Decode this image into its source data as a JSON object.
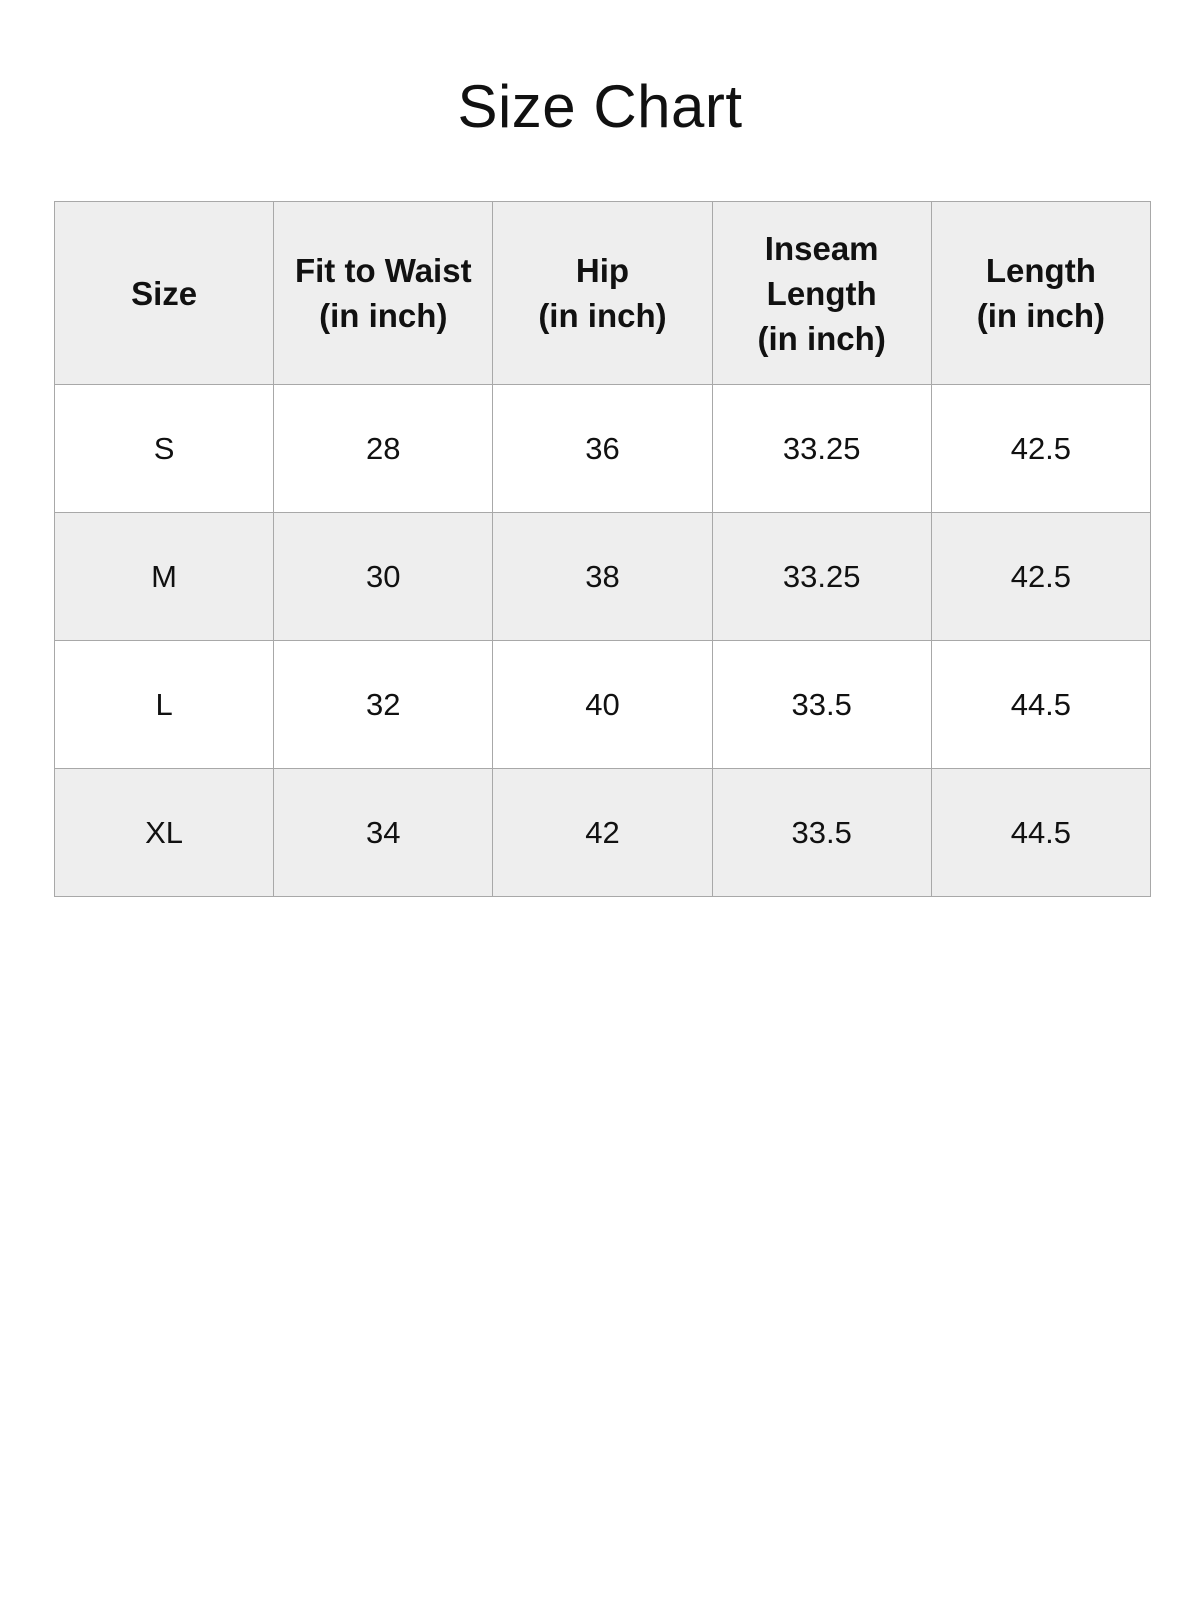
{
  "title": "Size Chart",
  "table": {
    "headers": [
      [
        "Size"
      ],
      [
        "Fit to Waist",
        "(in inch)"
      ],
      [
        "Hip",
        "(in inch)"
      ],
      [
        "Inseam",
        "Length",
        "(in inch)"
      ],
      [
        "Length",
        "(in inch)"
      ]
    ],
    "rows": [
      [
        "S",
        "28",
        "36",
        "33.25",
        "42.5"
      ],
      [
        "M",
        "30",
        "38",
        "33.25",
        "42.5"
      ],
      [
        "L",
        "32",
        "40",
        "33.5",
        "44.5"
      ],
      [
        "XL",
        "34",
        "42",
        "33.5",
        "44.5"
      ]
    ]
  },
  "colors": {
    "header_bg": "#eeeeee",
    "alt_row_bg": "#eeeeee",
    "border": "#a8a8a8"
  }
}
